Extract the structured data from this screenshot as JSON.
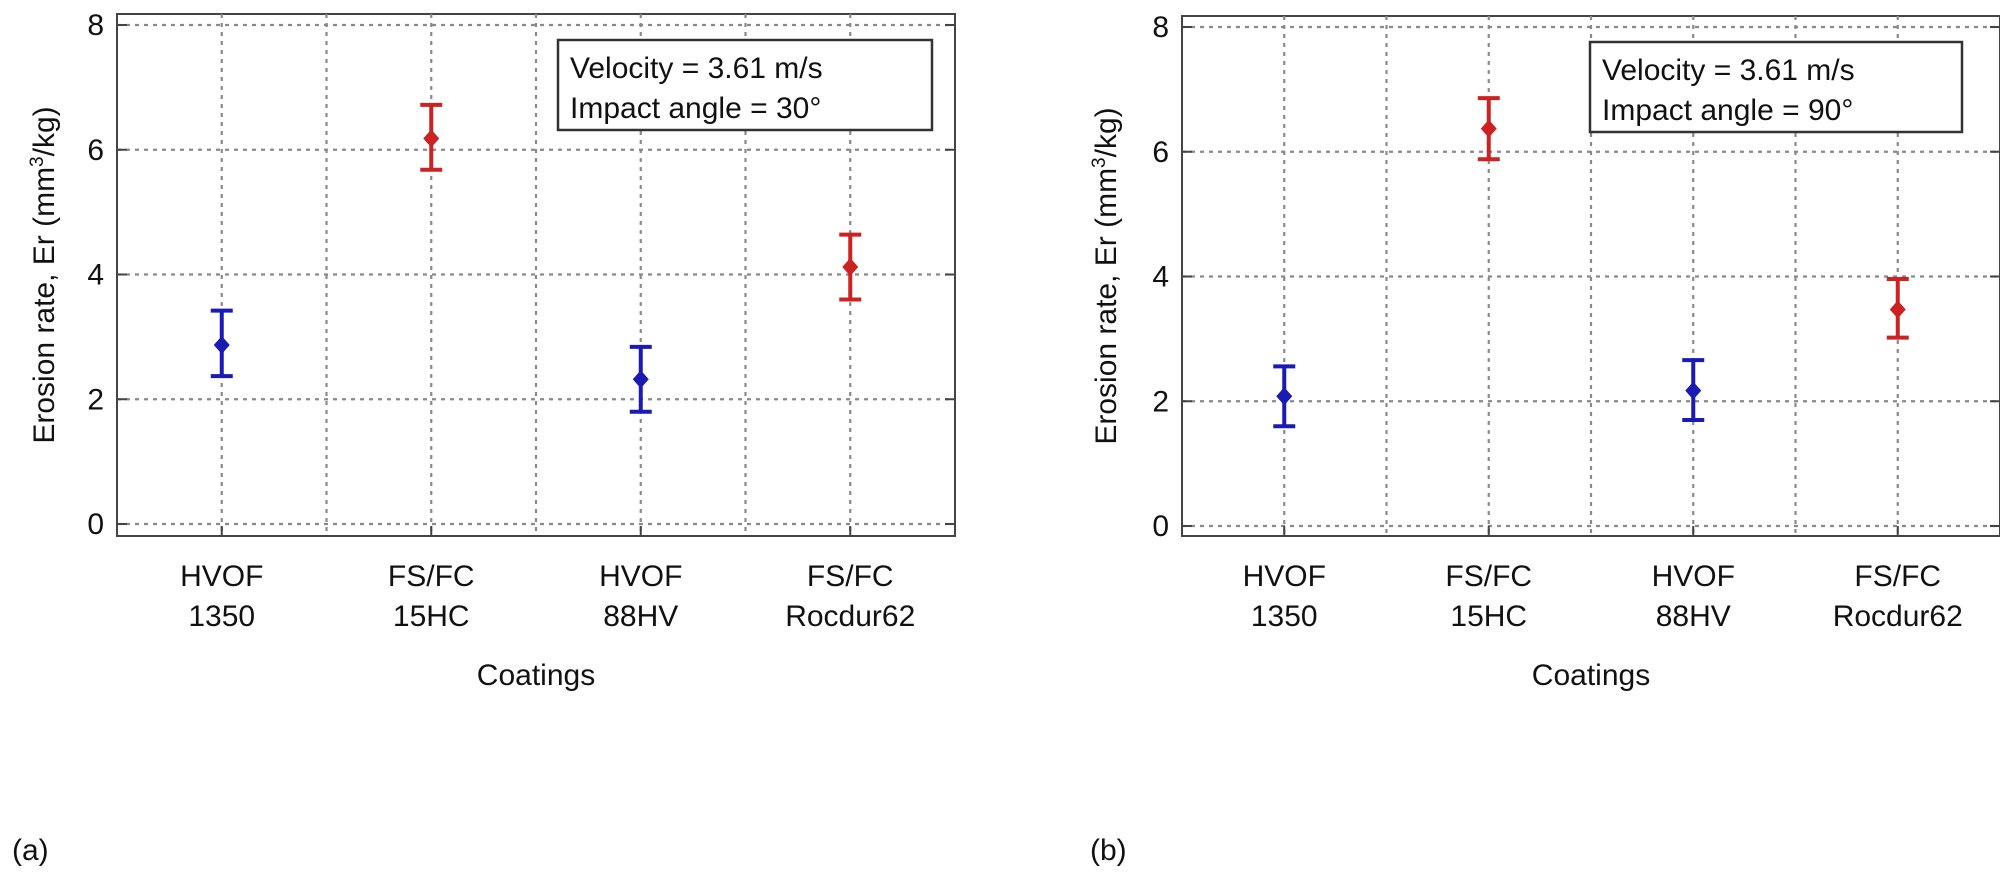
{
  "chart_data": [
    {
      "type": "scatter",
      "panel_label": "(a)",
      "categories": [
        {
          "line1": "HVOF",
          "line2": "1350"
        },
        {
          "line1": "FS/FC",
          "line2": "15HC"
        },
        {
          "line1": "HVOF",
          "line2": "88HV"
        },
        {
          "line1": "FS/FC",
          "line2": "Rocdur62"
        }
      ],
      "values": [
        2.87,
        6.18,
        2.32,
        4.12
      ],
      "error_low": [
        2.37,
        5.68,
        1.8,
        3.6
      ],
      "error_high": [
        3.42,
        6.72,
        2.84,
        4.64
      ],
      "point_colors": [
        "#1a1ab4",
        "#cc2222",
        "#1a1ab4",
        "#cc2222"
      ],
      "xlabel": "Coatings",
      "ylabel": "Erosion rate, Er (mm",
      "ylabel_sup": "3",
      "ylabel_tail": "/kg)",
      "ylim": [
        0,
        8
      ],
      "yticks": [
        "0",
        "2",
        "4",
        "6",
        "8"
      ],
      "grid": true,
      "annotation": {
        "line1": "Velocity = 3.61 m/s",
        "line2": "Impact angle = 30°"
      },
      "annotation_position": "top-right"
    },
    {
      "type": "scatter",
      "panel_label": "(b)",
      "categories": [
        {
          "line1": "HVOF",
          "line2": "1350"
        },
        {
          "line1": "FS/FC",
          "line2": "15HC"
        },
        {
          "line1": "HVOF",
          "line2": "88HV"
        },
        {
          "line1": "FS/FC",
          "line2": "Rocdur62"
        }
      ],
      "values": [
        2.08,
        6.37,
        2.17,
        3.47
      ],
      "error_low": [
        1.6,
        5.88,
        1.7,
        3.02
      ],
      "error_high": [
        2.56,
        6.86,
        2.66,
        3.96
      ],
      "point_colors": [
        "#1a1ab4",
        "#cc2222",
        "#1a1ab4",
        "#cc2222"
      ],
      "xlabel": "Coatings",
      "ylabel": "Erosion rate, Er (mm",
      "ylabel_sup": "3",
      "ylabel_tail": "/kg)",
      "ylim": [
        0,
        8
      ],
      "yticks": [
        "0",
        "2",
        "4",
        "6",
        "8"
      ],
      "grid": true,
      "annotation": {
        "line1": "Velocity = 3.61 m/s",
        "line2": "Impact angle = 90°"
      },
      "annotation_position": "top-right"
    }
  ]
}
